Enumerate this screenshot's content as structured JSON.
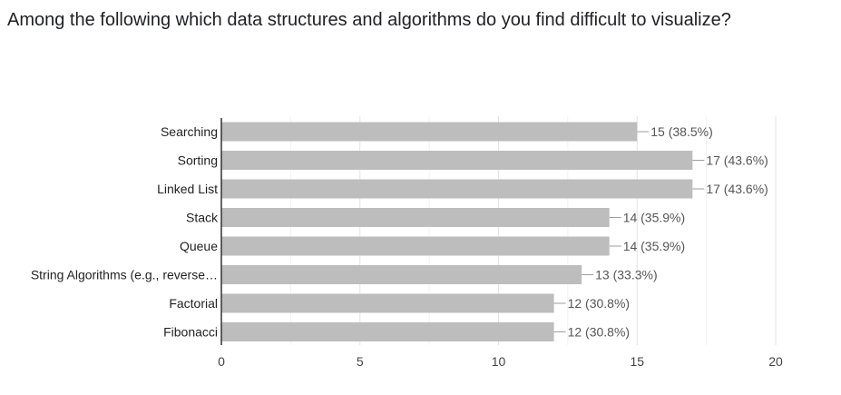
{
  "question": "Among the following which data structures and algorithms do you find difficult to visualize?",
  "chart_data": {
    "type": "bar",
    "orientation": "horizontal",
    "categories": [
      "Searching",
      "Sorting",
      "Linked List",
      "Stack",
      "Queue",
      "String Algorithms (e.g., reverse…",
      "Factorial",
      "Fibonacci"
    ],
    "values": [
      15,
      17,
      17,
      14,
      14,
      13,
      12,
      12
    ],
    "data_labels": [
      "15 (38.5%)",
      "17 (43.6%)",
      "17 (43.6%)",
      "14 (35.9%)",
      "14 (35.9%)",
      "13 (33.3%)",
      "12 (30.8%)",
      "12 (30.8%)"
    ],
    "xlim": [
      0,
      20
    ],
    "xticks": [
      0,
      5,
      10,
      15,
      20
    ],
    "xtick_labels": [
      "0",
      "5",
      "10",
      "15",
      "20"
    ],
    "grid": true,
    "bar_color": "#bdbdbd",
    "legend": "none"
  }
}
